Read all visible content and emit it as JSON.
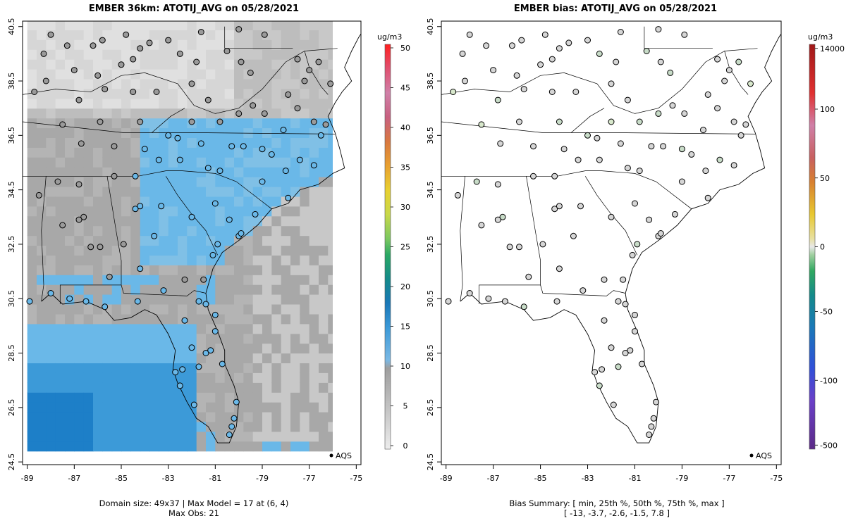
{
  "left_panel": {
    "title": "EMBER 36km: ATOTIJ_AVG on 05/28/2021",
    "unit": "ug/m3",
    "legend_text": "AQS",
    "footer_line1": "Domain size: 49x37 | Max Model = 17 at (6, 4)",
    "footer_line2": "Max Obs: 21",
    "colorbar_ticks": [
      "0",
      "5",
      "10",
      "15",
      "20",
      "25",
      "30",
      "35",
      "40",
      "45",
      "50"
    ]
  },
  "right_panel": {
    "title": "EMBER bias: ATOTIJ_AVG on 05/28/2021",
    "unit": "ug/m3",
    "legend_text": "AQS",
    "footer_line1": "Bias Summary: [ min, 25th %, 50th %, 75th %, max ]",
    "footer_line2": "[ -13,  -3.7,  -2.6,  -1.5,  7.8 ]",
    "colorbar_ticks": [
      "-500",
      "-100",
      "-50",
      "0",
      "50",
      "100",
      "14000"
    ]
  },
  "axes": {
    "x_ticks": [
      "-89",
      "-87",
      "-85",
      "-83",
      "-81",
      "-79",
      "-77",
      "-75"
    ],
    "y_ticks": [
      "24.5",
      "26.5",
      "28.5",
      "30.5",
      "32.5",
      "34.5",
      "36.5",
      "38.5",
      "40.5"
    ],
    "xlim": [
      -89.2,
      -74.8
    ],
    "ylim": [
      24.4,
      40.7
    ]
  },
  "colors": {
    "light_gray": "#e0e0e0",
    "mid_gray": "#c8c8c8",
    "dark_gray": "#a8a8a8",
    "sky_blue": "#6ab8e8",
    "blue": "#3c9ad8",
    "deep_blue": "#1d7fc8"
  }
}
